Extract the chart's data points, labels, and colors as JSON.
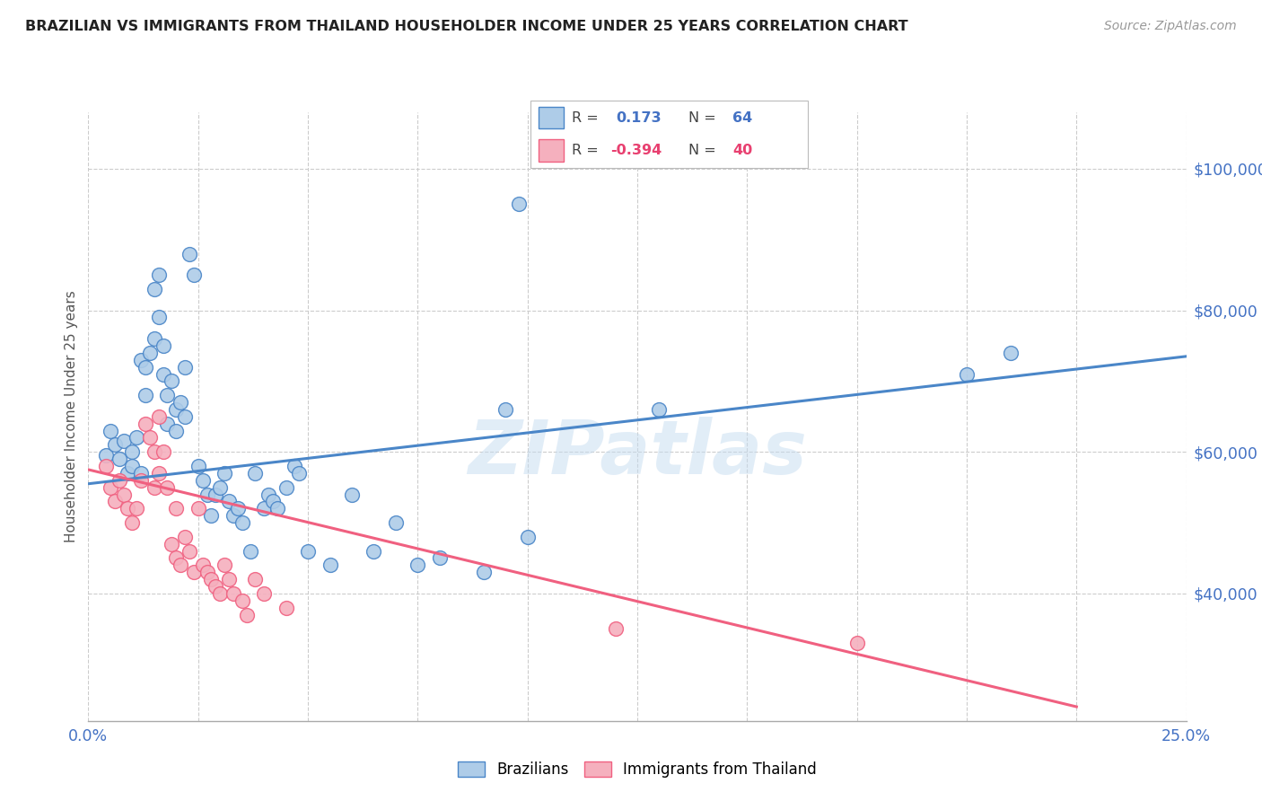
{
  "title": "BRAZILIAN VS IMMIGRANTS FROM THAILAND HOUSEHOLDER INCOME UNDER 25 YEARS CORRELATION CHART",
  "source": "Source: ZipAtlas.com",
  "ylabel": "Householder Income Under 25 years",
  "ytick_labels": [
    "$40,000",
    "$60,000",
    "$80,000",
    "$100,000"
  ],
  "ytick_values": [
    40000,
    60000,
    80000,
    100000
  ],
  "ymin": 22000,
  "ymax": 108000,
  "xmin": 0.0,
  "xmax": 0.25,
  "r_brazil": 0.173,
  "n_brazil": 64,
  "r_thailand": -0.394,
  "n_thailand": 40,
  "color_brazil": "#AECCE8",
  "color_thailand": "#F5B0BE",
  "color_brazil_line": "#4A86C8",
  "color_thailand_line": "#F06080",
  "color_brazil_text": "#4472C4",
  "color_thailand_text": "#E84070",
  "watermark": "ZIPatlas",
  "brazil_points": [
    [
      0.004,
      59500
    ],
    [
      0.005,
      63000
    ],
    [
      0.006,
      61000
    ],
    [
      0.007,
      59000
    ],
    [
      0.008,
      61500
    ],
    [
      0.009,
      57000
    ],
    [
      0.01,
      60000
    ],
    [
      0.01,
      58000
    ],
    [
      0.011,
      62000
    ],
    [
      0.012,
      57000
    ],
    [
      0.012,
      73000
    ],
    [
      0.013,
      68000
    ],
    [
      0.013,
      72000
    ],
    [
      0.014,
      74000
    ],
    [
      0.015,
      76000
    ],
    [
      0.015,
      83000
    ],
    [
      0.016,
      85000
    ],
    [
      0.016,
      79000
    ],
    [
      0.017,
      75000
    ],
    [
      0.017,
      71000
    ],
    [
      0.018,
      68000
    ],
    [
      0.018,
      64000
    ],
    [
      0.019,
      70000
    ],
    [
      0.02,
      66000
    ],
    [
      0.02,
      63000
    ],
    [
      0.021,
      67000
    ],
    [
      0.022,
      65000
    ],
    [
      0.022,
      72000
    ],
    [
      0.023,
      88000
    ],
    [
      0.024,
      85000
    ],
    [
      0.025,
      58000
    ],
    [
      0.026,
      56000
    ],
    [
      0.027,
      54000
    ],
    [
      0.028,
      51000
    ],
    [
      0.029,
      54000
    ],
    [
      0.03,
      55000
    ],
    [
      0.031,
      57000
    ],
    [
      0.032,
      53000
    ],
    [
      0.033,
      51000
    ],
    [
      0.034,
      52000
    ],
    [
      0.035,
      50000
    ],
    [
      0.037,
      46000
    ],
    [
      0.038,
      57000
    ],
    [
      0.04,
      52000
    ],
    [
      0.041,
      54000
    ],
    [
      0.042,
      53000
    ],
    [
      0.043,
      52000
    ],
    [
      0.045,
      55000
    ],
    [
      0.047,
      58000
    ],
    [
      0.048,
      57000
    ],
    [
      0.05,
      46000
    ],
    [
      0.055,
      44000
    ],
    [
      0.06,
      54000
    ],
    [
      0.065,
      46000
    ],
    [
      0.07,
      50000
    ],
    [
      0.075,
      44000
    ],
    [
      0.08,
      45000
    ],
    [
      0.09,
      43000
    ],
    [
      0.095,
      66000
    ],
    [
      0.098,
      95000
    ],
    [
      0.1,
      48000
    ],
    [
      0.13,
      66000
    ],
    [
      0.2,
      71000
    ],
    [
      0.21,
      74000
    ]
  ],
  "thailand_points": [
    [
      0.004,
      58000
    ],
    [
      0.005,
      55000
    ],
    [
      0.006,
      53000
    ],
    [
      0.007,
      56000
    ],
    [
      0.008,
      54000
    ],
    [
      0.009,
      52000
    ],
    [
      0.01,
      50000
    ],
    [
      0.011,
      52000
    ],
    [
      0.012,
      56000
    ],
    [
      0.013,
      64000
    ],
    [
      0.014,
      62000
    ],
    [
      0.015,
      60000
    ],
    [
      0.015,
      55000
    ],
    [
      0.016,
      57000
    ],
    [
      0.016,
      65000
    ],
    [
      0.017,
      60000
    ],
    [
      0.018,
      55000
    ],
    [
      0.019,
      47000
    ],
    [
      0.02,
      52000
    ],
    [
      0.02,
      45000
    ],
    [
      0.021,
      44000
    ],
    [
      0.022,
      48000
    ],
    [
      0.023,
      46000
    ],
    [
      0.024,
      43000
    ],
    [
      0.025,
      52000
    ],
    [
      0.026,
      44000
    ],
    [
      0.027,
      43000
    ],
    [
      0.028,
      42000
    ],
    [
      0.029,
      41000
    ],
    [
      0.03,
      40000
    ],
    [
      0.031,
      44000
    ],
    [
      0.032,
      42000
    ],
    [
      0.033,
      40000
    ],
    [
      0.035,
      39000
    ],
    [
      0.036,
      37000
    ],
    [
      0.038,
      42000
    ],
    [
      0.04,
      40000
    ],
    [
      0.045,
      38000
    ],
    [
      0.12,
      35000
    ],
    [
      0.175,
      33000
    ]
  ],
  "brazil_line_x": [
    0.0,
    0.25
  ],
  "brazil_line_y": [
    55500,
    73500
  ],
  "thailand_line_x": [
    0.0,
    0.225
  ],
  "thailand_line_y": [
    57500,
    24000
  ]
}
